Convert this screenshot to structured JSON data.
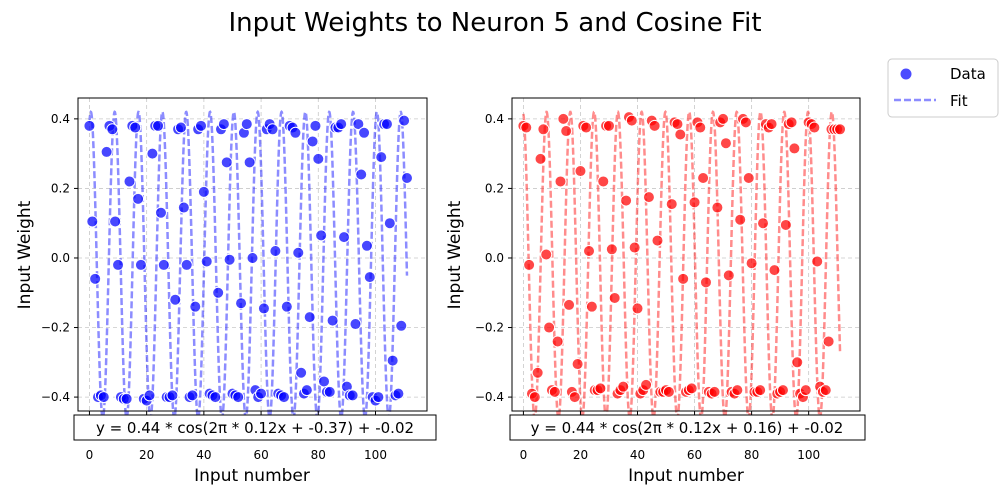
{
  "suptitle": "Input Weights to Neuron 5 and Cosine Fit",
  "legend": {
    "data_label": "Data",
    "fit_label": "Fit"
  },
  "chart_data": [
    {
      "type": "scatter",
      "name": "left",
      "xlabel": "Input number",
      "ylabel": "Input Weight",
      "xlim": [
        -4,
        118
      ],
      "ylim": [
        -0.44,
        0.46
      ],
      "xticks": [
        0,
        20,
        40,
        60,
        80,
        100
      ],
      "yticks": [
        -0.4,
        -0.2,
        0.0,
        0.2,
        0.4
      ],
      "tick_labels_x": [
        "0",
        "20",
        "40",
        "60",
        "80",
        "100"
      ],
      "tick_labels_y": [
        "−0.4",
        "−0.2",
        "0.0",
        "0.2",
        "0.4"
      ],
      "color": "#0000ff",
      "fit": {
        "A": 0.44,
        "f": 0.12,
        "phi": -0.37,
        "c": -0.02,
        "x_end": 111
      },
      "equation": "y = 0.44 * cos(2π * 0.12x + -0.37) + -0.02",
      "series": [
        {
          "name": "Data",
          "x": [
            0,
            1,
            2,
            3,
            4,
            5,
            6,
            7,
            8,
            9,
            10,
            11,
            12,
            13,
            14,
            15,
            16,
            17,
            18,
            19,
            20,
            21,
            22,
            23,
            24,
            25,
            26,
            27,
            28,
            29,
            30,
            31,
            32,
            33,
            34,
            35,
            36,
            37,
            38,
            39,
            40,
            41,
            42,
            43,
            44,
            45,
            46,
            47,
            48,
            49,
            50,
            51,
            52,
            53,
            54,
            55,
            56,
            57,
            58,
            59,
            60,
            61,
            62,
            63,
            64,
            65,
            66,
            67,
            68,
            69,
            70,
            71,
            72,
            73,
            74,
            75,
            76,
            77,
            78,
            79,
            80,
            81,
            82,
            83,
            84,
            85,
            86,
            87,
            88,
            89,
            90,
            91,
            92,
            93,
            94,
            95,
            96,
            97,
            98,
            99,
            100,
            101,
            102,
            103,
            104,
            105,
            106,
            107,
            108,
            109,
            110,
            111
          ],
          "y": [
            0.38,
            0.105,
            -0.06,
            -0.4,
            -0.395,
            -0.4,
            0.305,
            0.38,
            0.37,
            0.105,
            -0.02,
            -0.4,
            -0.405,
            -0.405,
            0.22,
            0.38,
            0.375,
            0.17,
            -0.02,
            -0.405,
            -0.41,
            -0.395,
            0.3,
            0.38,
            0.38,
            0.13,
            -0.02,
            -0.4,
            -0.4,
            -0.395,
            -0.12,
            0.37,
            0.375,
            0.145,
            -0.02,
            -0.4,
            -0.395,
            -0.14,
            0.37,
            0.38,
            0.19,
            -0.01,
            -0.39,
            -0.395,
            -0.4,
            -0.1,
            0.37,
            0.385,
            0.275,
            -0.005,
            -0.39,
            -0.395,
            -0.4,
            -0.13,
            0.36,
            0.385,
            0.275,
            0.0,
            -0.38,
            -0.4,
            -0.39,
            -0.145,
            0.37,
            0.385,
            0.37,
            0.02,
            -0.39,
            -0.395,
            -0.4,
            -0.14,
            0.38,
            0.375,
            0.36,
            0.015,
            -0.33,
            -0.39,
            -0.38,
            -0.17,
            0.335,
            0.38,
            0.285,
            0.065,
            -0.355,
            -0.385,
            -0.385,
            -0.18,
            0.375,
            0.375,
            0.385,
            0.06,
            -0.37,
            -0.395,
            -0.395,
            -0.19,
            0.385,
            0.24,
            0.36,
            0.035,
            -0.055,
            -0.4,
            -0.41,
            -0.4,
            0.29,
            0.385,
            0.385,
            0.1,
            -0.295,
            -0.395,
            -0.39,
            -0.195,
            0.395,
            0.23
          ]
        }
      ]
    },
    {
      "type": "scatter",
      "name": "right",
      "xlabel": "Input number",
      "ylabel": "Input Weight",
      "xlim": [
        -4,
        118
      ],
      "ylim": [
        -0.44,
        0.46
      ],
      "xticks": [
        0,
        20,
        40,
        60,
        80,
        100
      ],
      "yticks": [
        -0.4,
        -0.2,
        0.0,
        0.2,
        0.4
      ],
      "tick_labels_x": [
        "0",
        "20",
        "40",
        "60",
        "80",
        "100"
      ],
      "tick_labels_y": [
        "−0.4",
        "−0.2",
        "0.0",
        "0.2",
        "0.4"
      ],
      "color": "#ff0000",
      "fit": {
        "A": 0.44,
        "f": 0.12,
        "phi": 0.16,
        "c": -0.02,
        "x_end": 111
      },
      "equation": "y = 0.44 * cos(2π * 0.12x + 0.16) + -0.02",
      "series": [
        {
          "name": "Data",
          "x": [
            0,
            1,
            2,
            3,
            4,
            5,
            6,
            7,
            8,
            9,
            10,
            11,
            12,
            13,
            14,
            15,
            16,
            17,
            18,
            19,
            20,
            21,
            22,
            23,
            24,
            25,
            26,
            27,
            28,
            29,
            30,
            31,
            32,
            33,
            34,
            35,
            36,
            37,
            38,
            39,
            40,
            41,
            42,
            43,
            44,
            45,
            46,
            47,
            48,
            49,
            50,
            51,
            52,
            53,
            54,
            55,
            56,
            57,
            58,
            59,
            60,
            61,
            62,
            63,
            64,
            65,
            66,
            67,
            68,
            69,
            70,
            71,
            72,
            73,
            74,
            75,
            76,
            77,
            78,
            79,
            80,
            81,
            82,
            83,
            84,
            85,
            86,
            87,
            88,
            89,
            90,
            91,
            92,
            93,
            94,
            95,
            96,
            97,
            98,
            99,
            100,
            101,
            102,
            103,
            104,
            105,
            106,
            107,
            108,
            109,
            110,
            111
          ],
          "y": [
            0.38,
            0.375,
            -0.02,
            -0.39,
            -0.4,
            -0.33,
            0.285,
            0.37,
            0.01,
            -0.2,
            -0.38,
            -0.385,
            -0.24,
            0.22,
            0.4,
            0.365,
            -0.135,
            -0.385,
            -0.4,
            -0.305,
            0.25,
            0.38,
            0.375,
            0.02,
            -0.14,
            -0.38,
            -0.38,
            -0.375,
            0.22,
            0.38,
            0.38,
            0.025,
            -0.115,
            -0.39,
            -0.38,
            -0.37,
            0.165,
            0.405,
            0.395,
            0.03,
            -0.145,
            -0.39,
            -0.38,
            -0.365,
            0.175,
            0.395,
            0.38,
            0.05,
            -0.385,
            -0.385,
            -0.38,
            -0.385,
            0.155,
            0.39,
            0.385,
            0.355,
            -0.06,
            -0.385,
            -0.38,
            -0.375,
            0.16,
            0.39,
            0.375,
            0.23,
            -0.07,
            -0.385,
            -0.39,
            -0.385,
            0.145,
            0.39,
            0.4,
            0.33,
            -0.05,
            -0.385,
            -0.39,
            -0.38,
            0.11,
            0.4,
            0.39,
            0.23,
            -0.015,
            -0.385,
            -0.385,
            -0.38,
            0.1,
            0.385,
            0.375,
            0.385,
            -0.035,
            -0.39,
            -0.385,
            -0.38,
            0.095,
            0.385,
            0.39,
            0.315,
            -0.3,
            -0.39,
            -0.4,
            -0.38,
            0.39,
            0.385,
            0.375,
            -0.01,
            -0.37,
            -0.385,
            -0.38,
            -0.24,
            0.37,
            0.37,
            0.37,
            0.37
          ]
        }
      ]
    }
  ]
}
